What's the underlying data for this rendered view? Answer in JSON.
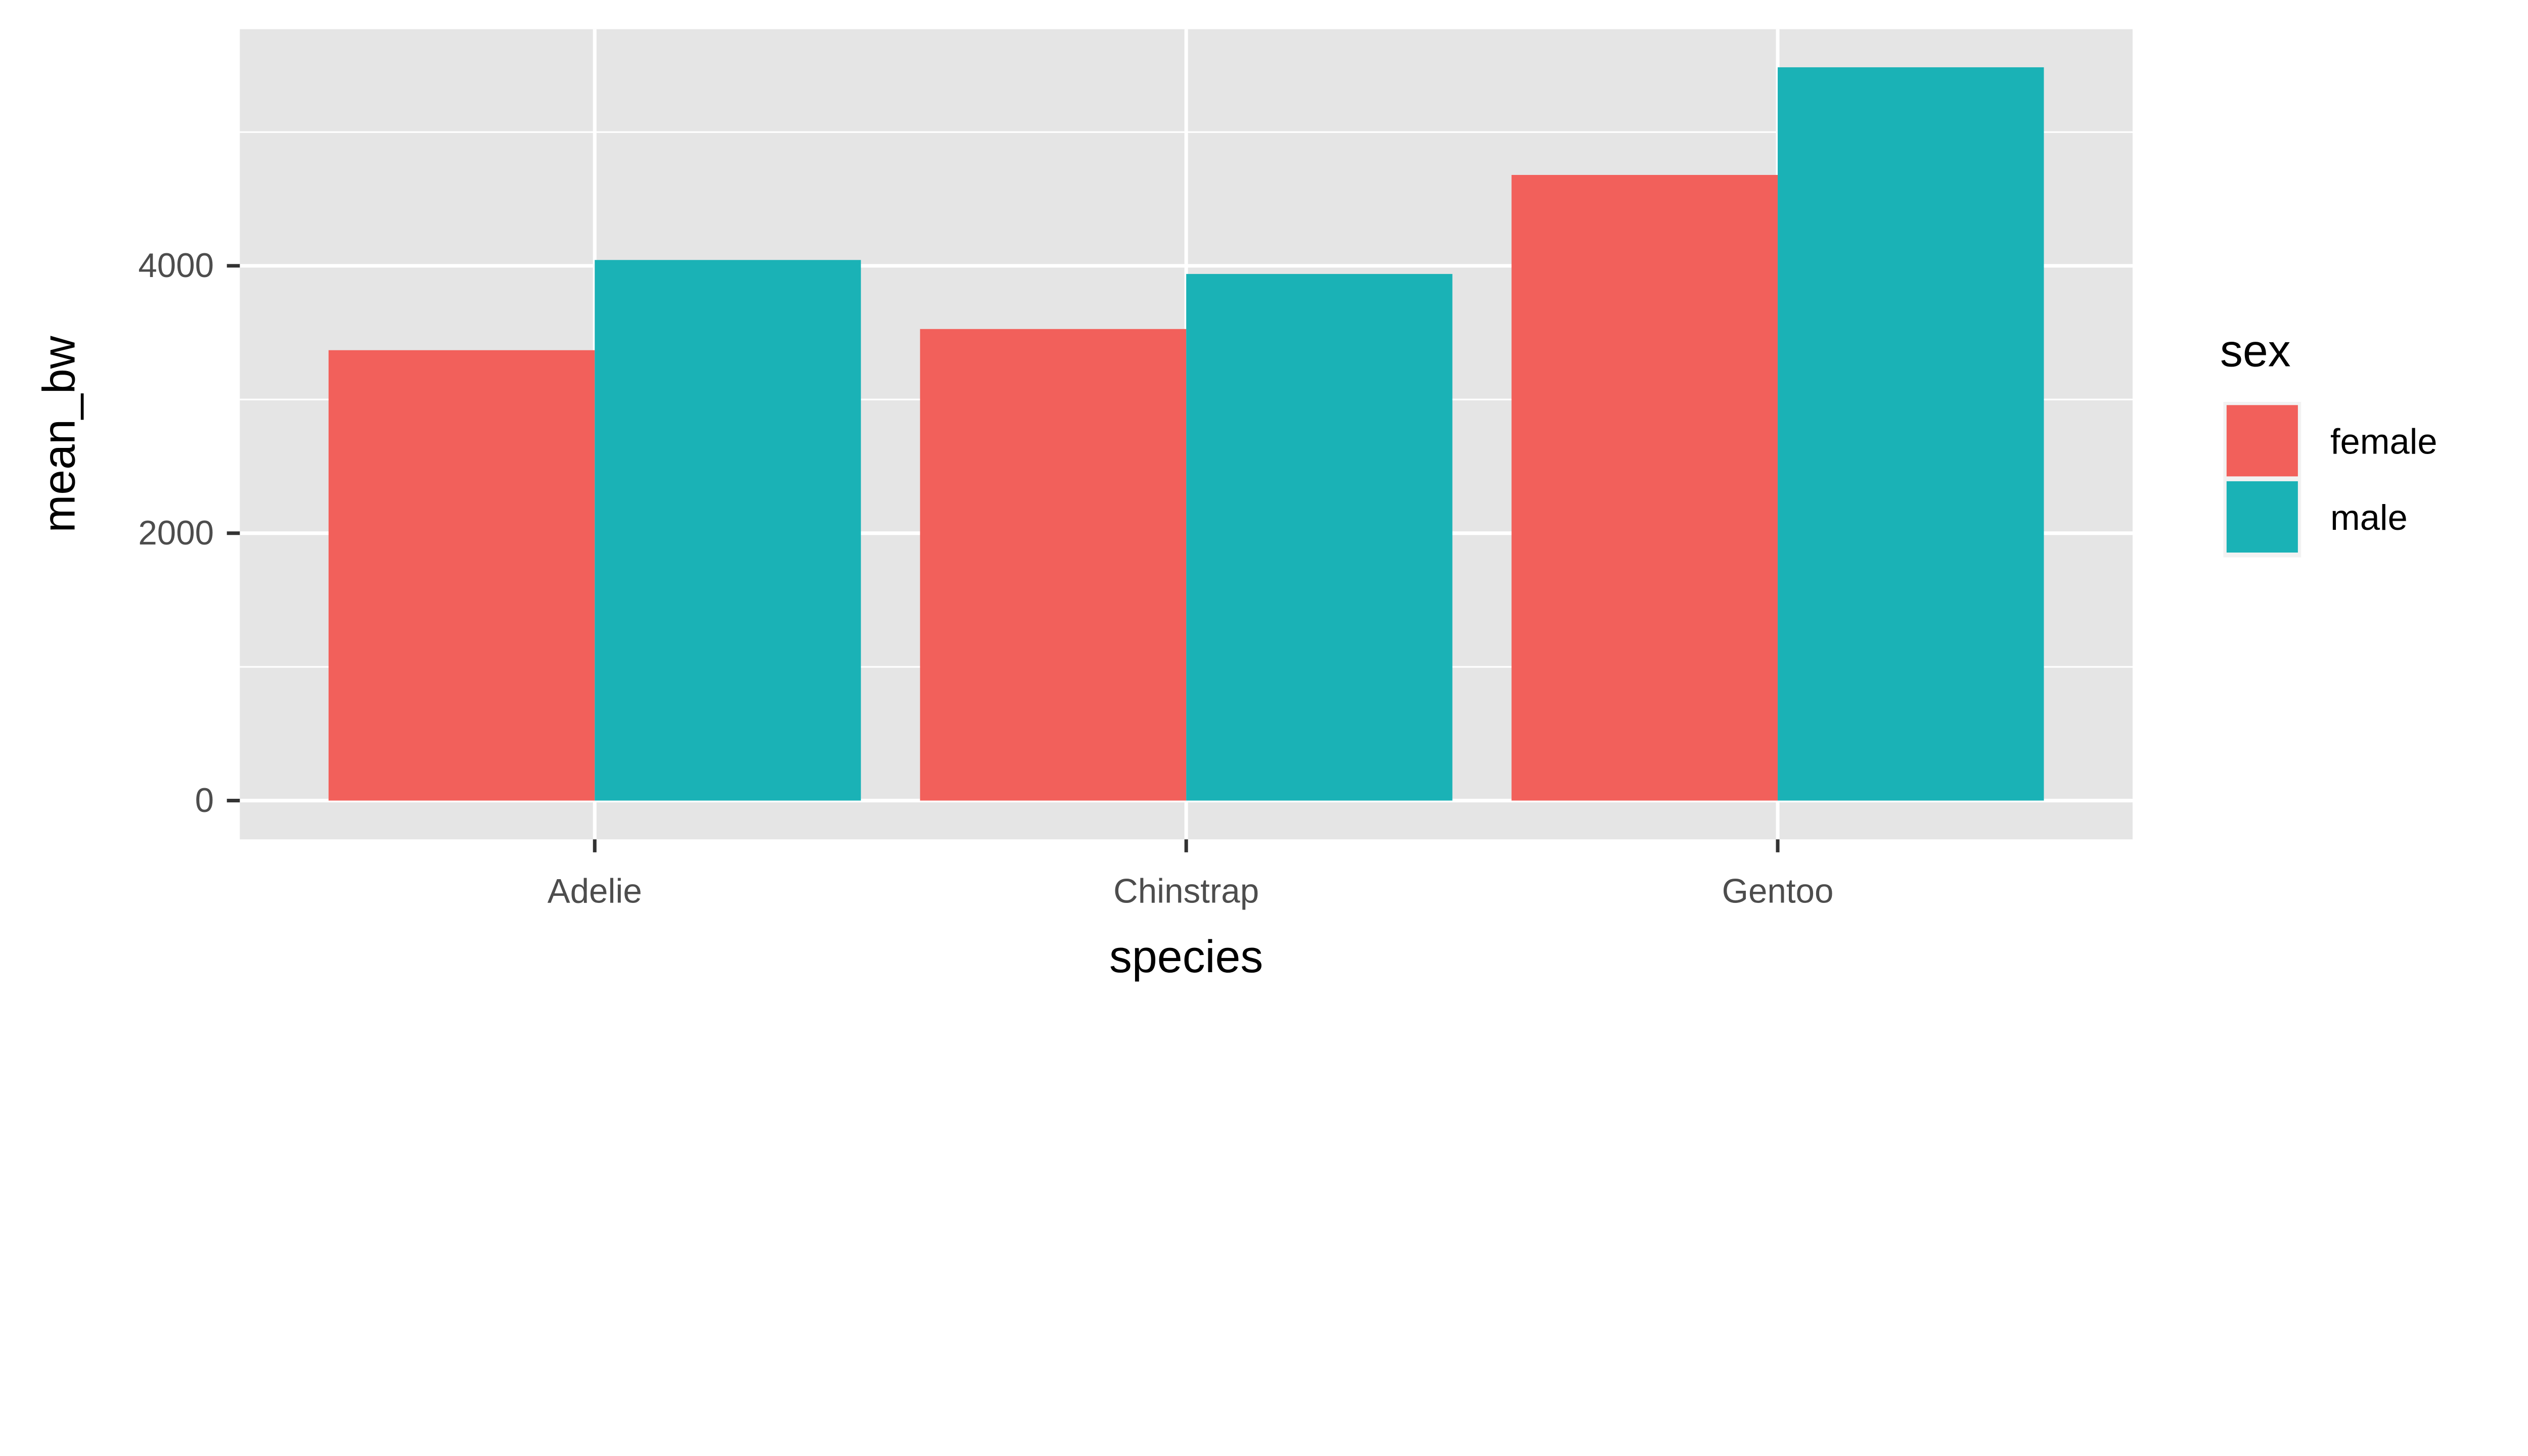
{
  "chart_data": {
    "type": "bar",
    "title": "",
    "xlabel": "species",
    "ylabel": "mean_bw",
    "categories": [
      "Adelie",
      "Chinstrap",
      "Gentoo"
    ],
    "series": [
      {
        "name": "female",
        "color": "#F2605B",
        "values": [
          3368.8,
          3527.2,
          4679.7
        ]
      },
      {
        "name": "male",
        "color": "#1AB2B6",
        "values": [
          4043.5,
          3939.0,
          5484.8
        ]
      }
    ],
    "ylim": [
      -290,
      5770
    ],
    "yticks": [
      0,
      2000,
      4000
    ],
    "yticks_minor": [
      1000,
      3000,
      5000
    ],
    "ytick_labels": [
      "0",
      "2000",
      "4000"
    ],
    "grid": true,
    "legend": {
      "title": "sex",
      "position": "right",
      "entries": [
        "female",
        "male"
      ]
    },
    "panel_background": "#E5E5E5"
  }
}
